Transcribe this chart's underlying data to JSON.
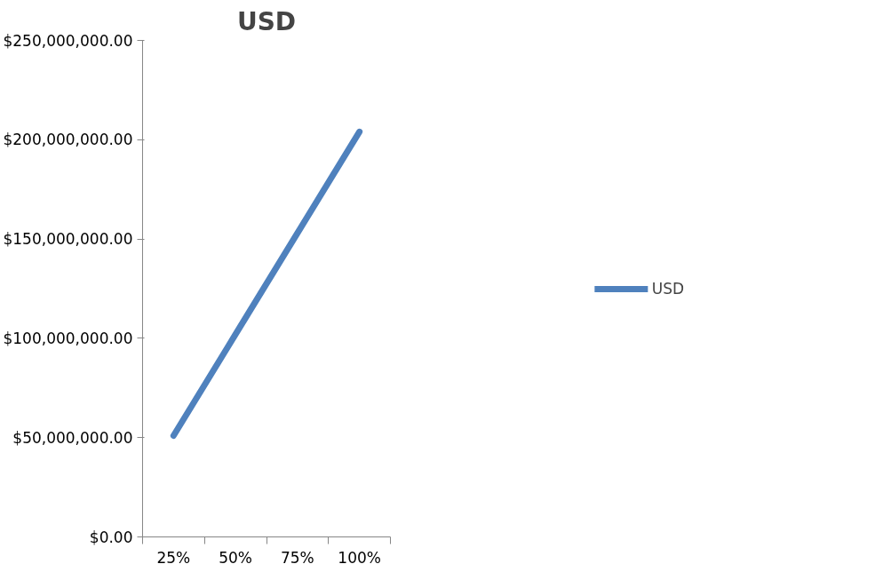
{
  "chart_data": {
    "type": "line",
    "title": "USD",
    "categories": [
      "25%",
      "50%",
      "75%",
      "100%"
    ],
    "series": [
      {
        "name": "USD",
        "color": "#4f81bd",
        "values": [
          51000000,
          102000000,
          153000000,
          204000000
        ]
      }
    ],
    "ylim": [
      0,
      250000000
    ],
    "yticks": [
      {
        "value": 0,
        "label": "$0.00"
      },
      {
        "value": 50000000,
        "label": "$50,000,000.00"
      },
      {
        "value": 100000000,
        "label": "$100,000,000.00"
      },
      {
        "value": 150000000,
        "label": "$150,000,000.00"
      },
      {
        "value": 200000000,
        "label": "$200,000,000.00"
      },
      {
        "value": 250000000,
        "label": "$250,000,000.00"
      }
    ],
    "grid": false,
    "legend": "right",
    "marker": "none",
    "line_style": "solid"
  }
}
